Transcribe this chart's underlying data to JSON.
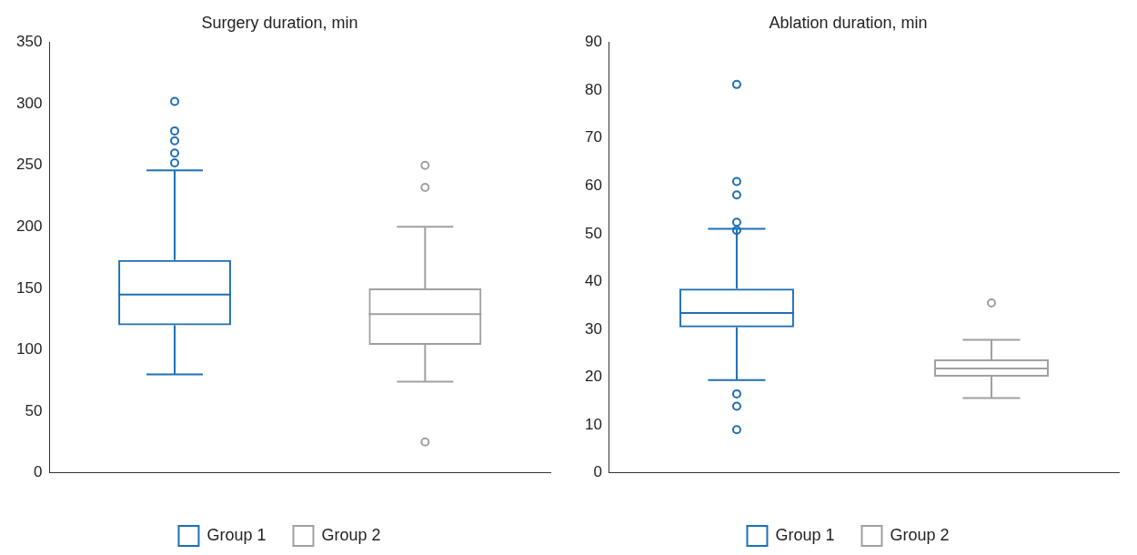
{
  "chart_data": [
    {
      "type": "box",
      "title": "Surgery duration, min",
      "categories": [
        null,
        null
      ],
      "ylim": [
        0,
        350
      ],
      "yticks": [
        0,
        50,
        100,
        150,
        200,
        250,
        300,
        350
      ],
      "grid": false,
      "legend": "bottom",
      "marker": "circle",
      "series": [
        {
          "name": "Group 1",
          "color": "#1f6fb4",
          "boxes": [
            {
              "low": 80,
              "q1": 120,
              "median": 145,
              "q3": 173,
              "high": 246,
              "outliers": [
                252,
                260,
                270,
                278,
                302
              ]
            },
            null
          ]
        },
        {
          "name": "Group 2",
          "color": "#a0a0a0",
          "boxes": [
            null,
            {
              "low": 74,
              "q1": 104,
              "median": 129,
              "q3": 150,
              "high": 200,
              "outliers": [
                25,
                232,
                250
              ]
            }
          ]
        }
      ]
    },
    {
      "type": "box",
      "title": "Ablation duration, min",
      "categories": [
        null,
        null
      ],
      "ylim": [
        0,
        90
      ],
      "yticks": [
        0,
        10,
        20,
        30,
        40,
        50,
        60,
        70,
        80,
        90
      ],
      "grid": false,
      "legend": "bottom",
      "marker": "circle",
      "series": [
        {
          "name": "Group 1",
          "color": "#1f6fb4",
          "boxes": [
            {
              "low": 19.4,
              "q1": 30.4,
              "median": 33.4,
              "q3": 38.5,
              "high": 51,
              "outliers": [
                9,
                13.9,
                16.5,
                50.7,
                52.4,
                58.1,
                60.9,
                81.2
              ]
            },
            null
          ]
        },
        {
          "name": "Group 2",
          "color": "#a0a0a0",
          "boxes": [
            null,
            {
              "low": 15.6,
              "q1": 20.1,
              "median": 21.8,
              "q3": 23.7,
              "high": 27.8,
              "outliers": [
                35.5
              ]
            }
          ]
        }
      ]
    }
  ]
}
